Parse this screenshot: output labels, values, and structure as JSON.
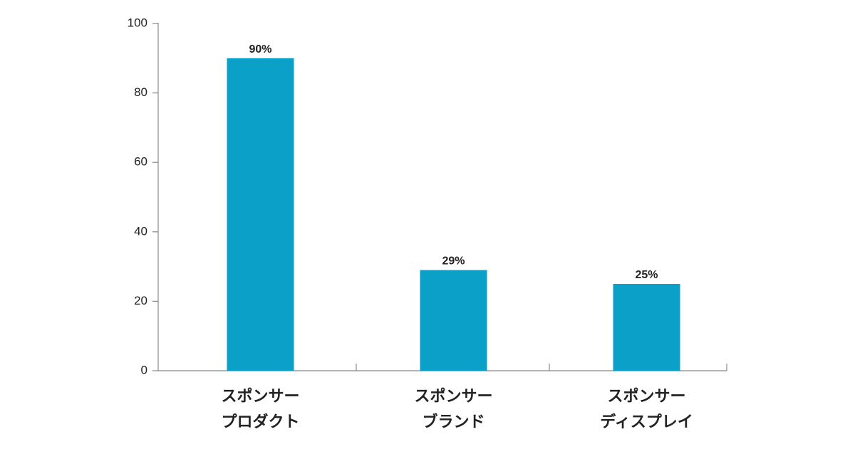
{
  "chart_data": {
    "type": "bar",
    "categories": [
      [
        "スポンサー",
        "プロダクト"
      ],
      [
        "スポンサー",
        "ブランド"
      ],
      [
        "スポンサー",
        "ディスプレイ"
      ]
    ],
    "values": [
      90,
      29,
      25
    ],
    "value_labels": [
      "90%",
      "29%",
      "25%"
    ],
    "color": "#0aa0c8",
    "ylim": [
      0,
      100
    ],
    "yticks": [
      0,
      20,
      40,
      60,
      80,
      100
    ],
    "grid": false
  }
}
